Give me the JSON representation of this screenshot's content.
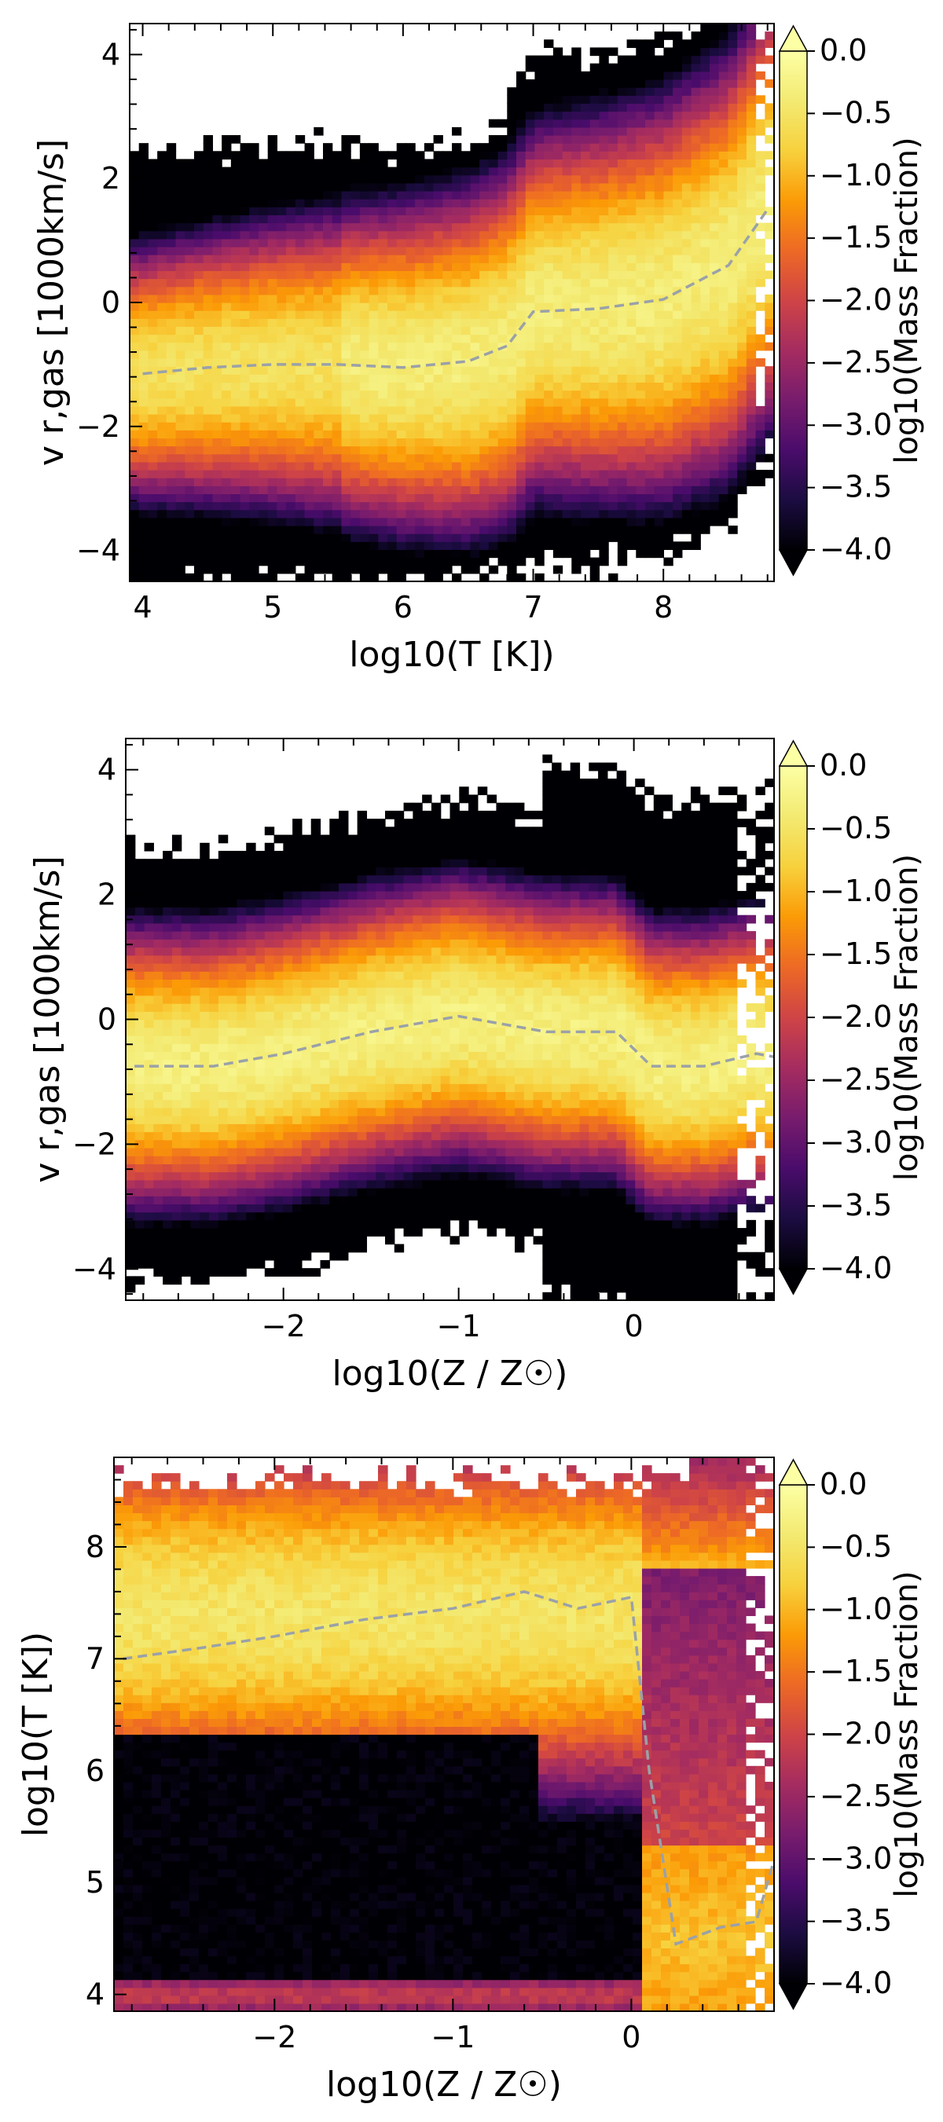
{
  "chart_data": [
    {
      "type": "heatmap",
      "title": "",
      "xlabel": "log10(T [K])",
      "ylabel": "v r,gas [1000km/s]",
      "xlim": [
        3.9,
        8.85
      ],
      "ylim": [
        -4.5,
        4.5
      ],
      "xticks": [
        4,
        5,
        6,
        7,
        8
      ],
      "yticks": [
        -4,
        -2,
        0,
        2,
        4
      ],
      "x_tick_labels": [
        "4",
        "5",
        "6",
        "7",
        "8"
      ],
      "y_tick_labels": [
        "−4",
        "−2",
        "0",
        "2",
        "4"
      ],
      "colorbar": {
        "label": "log10(Mass Fraction)",
        "range": [
          -4.0,
          0.0
        ],
        "ticks": [
          0.0,
          -0.5,
          -1.0,
          -1.5,
          -2.0,
          -2.5,
          -3.0,
          -3.5,
          -4.0
        ],
        "tick_labels": [
          "0.0",
          "−0.5",
          "−1.0",
          "−1.5",
          "−2.0",
          "−2.5",
          "−3.0",
          "−3.5",
          "−4.0"
        ],
        "colormap": "inferno",
        "extend": "both"
      },
      "median_line": {
        "style": "dashed",
        "color": "#9aa1a8",
        "x": [
          4.0,
          4.5,
          5.0,
          5.5,
          6.0,
          6.5,
          6.8,
          7.0,
          7.5,
          8.0,
          8.5,
          8.8
        ],
        "y": [
          -1.15,
          -1.05,
          -1.0,
          -1.0,
          -1.05,
          -0.95,
          -0.7,
          -0.15,
          -0.1,
          0.05,
          0.6,
          1.5
        ]
      }
    },
    {
      "type": "heatmap",
      "title": "",
      "xlabel": "log10(Z / Z☉)",
      "ylabel": "v r,gas [1000km/s]",
      "xlim": [
        -2.9,
        0.8
      ],
      "ylim": [
        -4.5,
        4.5
      ],
      "xticks": [
        -2,
        -1,
        0
      ],
      "yticks": [
        -4,
        -2,
        0,
        2,
        4
      ],
      "x_tick_labels": [
        "−2",
        "−1",
        "0"
      ],
      "y_tick_labels": [
        "−4",
        "−2",
        "0",
        "2",
        "4"
      ],
      "colorbar": {
        "label": "log10(Mass Fraction)",
        "range": [
          -4.0,
          0.0
        ],
        "ticks": [
          0.0,
          -0.5,
          -1.0,
          -1.5,
          -2.0,
          -2.5,
          -3.0,
          -3.5,
          -4.0
        ],
        "tick_labels": [
          "0.0",
          "−0.5",
          "−1.0",
          "−1.5",
          "−2.0",
          "−2.5",
          "−3.0",
          "−3.5",
          "−4.0"
        ],
        "colormap": "inferno",
        "extend": "both"
      },
      "median_line": {
        "style": "dashed",
        "color": "#9aa1a8",
        "x": [
          -2.85,
          -2.4,
          -2.0,
          -1.5,
          -1.0,
          -0.5,
          -0.1,
          0.1,
          0.4,
          0.7,
          0.8
        ],
        "y": [
          -0.75,
          -0.75,
          -0.55,
          -0.2,
          0.05,
          -0.2,
          -0.2,
          -0.75,
          -0.75,
          -0.55,
          -0.6
        ]
      }
    },
    {
      "type": "heatmap",
      "title": "",
      "xlabel": "log10(Z / Z☉)",
      "ylabel": "log10(T [K])",
      "xlim": [
        -2.9,
        0.8
      ],
      "ylim": [
        3.85,
        8.8
      ],
      "xticks": [
        -2,
        -1,
        0
      ],
      "yticks": [
        4,
        5,
        6,
        7,
        8
      ],
      "x_tick_labels": [
        "−2",
        "−1",
        "0"
      ],
      "y_tick_labels": [
        "4",
        "5",
        "6",
        "7",
        "8"
      ],
      "colorbar": {
        "label": "log10(Mass Fraction)",
        "range": [
          -4.0,
          0.0
        ],
        "ticks": [
          0.0,
          -0.5,
          -1.0,
          -1.5,
          -2.0,
          -2.5,
          -3.0,
          -3.5,
          -4.0
        ],
        "tick_labels": [
          "0.0",
          "−0.5",
          "−1.0",
          "−1.5",
          "−2.0",
          "−2.5",
          "−3.0",
          "−3.5",
          "−4.0"
        ],
        "colormap": "inferno",
        "extend": "both"
      },
      "median_line": {
        "style": "dashed",
        "color": "#9aa1a8",
        "x": [
          -2.85,
          -2.4,
          -2.0,
          -1.5,
          -1.0,
          -0.6,
          -0.3,
          0.0,
          0.1,
          0.25,
          0.5,
          0.7,
          0.8
        ],
        "y": [
          7.0,
          7.1,
          7.2,
          7.35,
          7.45,
          7.6,
          7.45,
          7.55,
          6.0,
          4.45,
          4.6,
          4.65,
          5.2
        ]
      }
    }
  ]
}
